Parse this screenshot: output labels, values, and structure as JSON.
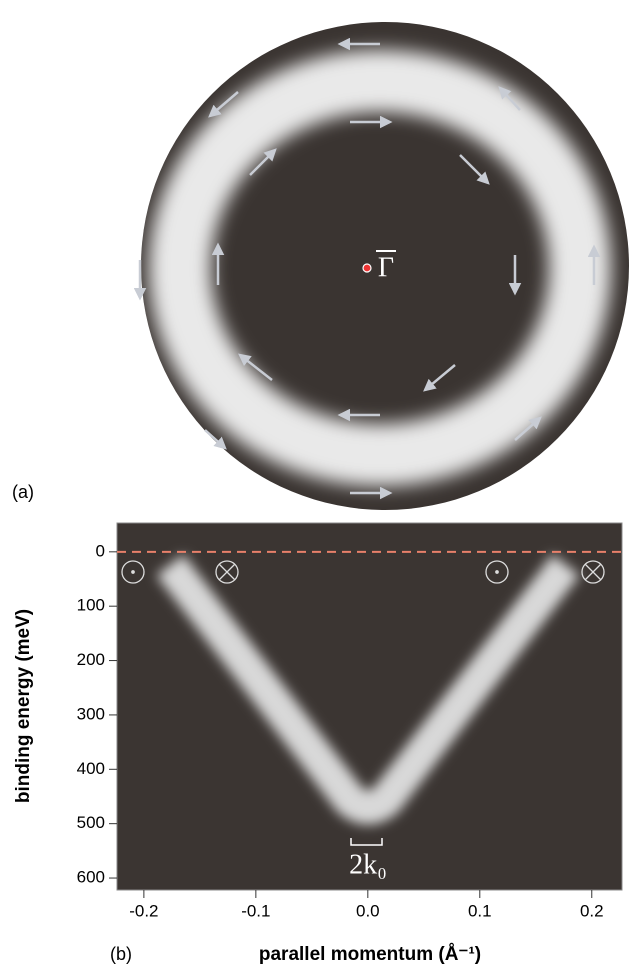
{
  "panel_a": {
    "label": "(a)",
    "center_label": "Γ"
  },
  "chart_data": {
    "type": "band-map",
    "label": "(b)",
    "x_label": "parallel momentum (Å⁻¹)",
    "y_label": "binding energy (meV)",
    "xlim": [
      -0.224,
      0.227
    ],
    "ylim": [
      622,
      -53
    ],
    "xticks": [
      -0.2,
      -0.1,
      {
        "value": 0,
        "label": "0.0"
      },
      0.1,
      0.2
    ],
    "yticks": [
      0,
      100,
      200,
      300,
      400,
      500,
      600
    ],
    "reference_line": 0,
    "reference_color": "#e8806a",
    "annotation": "2k₀"
  }
}
